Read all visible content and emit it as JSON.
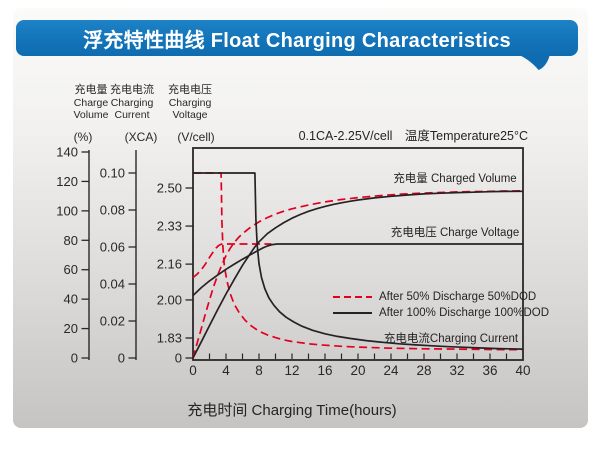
{
  "header": {
    "title": "浮充特性曲线 Float Charging Characteristics"
  },
  "colors": {
    "banner_blue": "#1373b8",
    "banner_blue_dark": "#0f6cb0",
    "red": "#e3001e",
    "ink": "#2b2728",
    "curve_black": "#262223"
  },
  "chart_data": {
    "type": "line",
    "title": "浮充特性曲线 Float Charging Characteristics",
    "condition_note": "0.1CA-2.25V/cell　温度Temperature25°C",
    "x_axis": {
      "title": "充电时间 Charging Time(hours)",
      "min": 0,
      "max": 40,
      "tick_step": 4,
      "minor_tick_step": 2,
      "tick_labels": [
        "0",
        "4",
        "8",
        "12",
        "16",
        "20",
        "24",
        "28",
        "32",
        "36",
        "40"
      ]
    },
    "y_axes": [
      {
        "id": "percent",
        "label_zh": "充电量",
        "label_en1": "Charge",
        "label_en2": "Volume",
        "unit": "(%)",
        "min": 0,
        "max": 140,
        "tick_labels": [
          "0",
          "20",
          "40",
          "60",
          "80",
          "100",
          "120",
          "140"
        ]
      },
      {
        "id": "xca",
        "label_zh": "充电电流",
        "label_en1": "Charging",
        "label_en2": "Current",
        "unit": "(XCA)",
        "min": 0,
        "max": 0.1,
        "tick_labels": [
          "0",
          "0.02",
          "0.04",
          "0.06",
          "0.08",
          "0.10"
        ]
      },
      {
        "id": "vcell",
        "label_zh": "充电电压",
        "label_en1": "Charging",
        "label_en2": "Voltage",
        "unit": "(V/cell)",
        "min": 1.83,
        "max": 2.5,
        "tick_labels": [
          "0",
          "1.83",
          "2.00",
          "2.16",
          "2.33",
          "2.50"
        ]
      }
    ],
    "legend": [
      {
        "label": "After 50% Discharge 50%DOD",
        "line": "dashed",
        "color": "#e3001e"
      },
      {
        "label": "After 100%  Discharge 100%DOD",
        "line": "solid",
        "color": "#262223"
      }
    ],
    "curve_labels": [
      {
        "text": "充电量 Charged Volume"
      },
      {
        "text": "充电电压 Charge Voltage"
      },
      {
        "text": "充电电流Charging Current"
      }
    ],
    "series": [
      {
        "id": "charged-volume-50dod",
        "name": "Charged Volume (50%DOD)",
        "scale": "percent",
        "color": "#e3001e",
        "dashed": true,
        "points": [
          [
            0,
            0
          ],
          [
            0.5,
            10
          ],
          [
            1,
            20
          ],
          [
            1.5,
            30
          ],
          [
            2,
            39.5
          ],
          [
            2.5,
            48.5
          ],
          [
            3,
            56.5
          ],
          [
            3.5,
            63.5
          ],
          [
            4,
            69.5
          ],
          [
            4.5,
            74.5
          ],
          [
            5,
            78.5
          ],
          [
            5.5,
            81.8
          ],
          [
            6,
            84.5
          ],
          [
            7,
            89
          ],
          [
            8,
            92.5
          ],
          [
            9,
            95.4
          ],
          [
            10,
            97.8
          ],
          [
            11,
            99.8
          ],
          [
            12,
            101.4
          ],
          [
            14,
            104
          ],
          [
            16,
            106.1
          ],
          [
            18,
            107.7
          ],
          [
            20,
            109
          ],
          [
            22,
            110
          ],
          [
            24,
            110.9
          ],
          [
            26,
            111.6
          ],
          [
            28,
            112.1
          ],
          [
            30,
            112.5
          ],
          [
            32,
            112.9
          ],
          [
            34,
            113.1
          ],
          [
            36,
            113.3
          ],
          [
            38,
            113.5
          ],
          [
            40,
            113.6
          ]
        ]
      },
      {
        "id": "charge-voltage-50dod",
        "name": "Charge Voltage (50%DOD)",
        "scale": "vcell",
        "color": "#e3001e",
        "dashed": true,
        "points": [
          [
            0,
            2.1
          ],
          [
            0.5,
            2.115
          ],
          [
            1,
            2.135
          ],
          [
            1.5,
            2.16
          ],
          [
            2,
            2.19
          ],
          [
            2.4,
            2.212
          ],
          [
            2.8,
            2.232
          ],
          [
            3.1,
            2.243
          ],
          [
            3.4,
            2.249
          ],
          [
            3.6,
            2.25
          ],
          [
            9.5,
            2.25
          ]
        ]
      },
      {
        "id": "charging-current-50dod",
        "name": "Charging Current (50%DOD)",
        "scale": "xca",
        "color": "#e3001e",
        "dashed": true,
        "points": [
          [
            0,
            0.1
          ],
          [
            3.4,
            0.1
          ],
          [
            3.5,
            0.074
          ],
          [
            3.62,
            0.06
          ],
          [
            3.8,
            0.05
          ],
          [
            4.1,
            0.042
          ],
          [
            4.5,
            0.035
          ],
          [
            5,
            0.029
          ],
          [
            5.6,
            0.0245
          ],
          [
            6.3,
            0.0205
          ],
          [
            7,
            0.0175
          ],
          [
            8,
            0.0145
          ],
          [
            9,
            0.0125
          ],
          [
            10,
            0.011
          ],
          [
            11,
            0.0098
          ],
          [
            12,
            0.0089
          ],
          [
            14,
            0.0077
          ],
          [
            16,
            0.0069
          ],
          [
            18,
            0.0063
          ],
          [
            20,
            0.0059
          ],
          [
            24,
            0.0053
          ],
          [
            28,
            0.005
          ],
          [
            32,
            0.0048
          ],
          [
            36,
            0.0046
          ],
          [
            40,
            0.0045
          ]
        ]
      },
      {
        "id": "charging-current-100dod",
        "name": "Charging Current (100%DOD)",
        "scale": "xca",
        "color": "#262223",
        "dashed": false,
        "points": [
          [
            0,
            0.1
          ],
          [
            7.5,
            0.1
          ],
          [
            7.62,
            0.075
          ],
          [
            7.78,
            0.061
          ],
          [
            8,
            0.051
          ],
          [
            8.3,
            0.0435
          ],
          [
            8.7,
            0.0375
          ],
          [
            9.2,
            0.0325
          ],
          [
            9.8,
            0.0285
          ],
          [
            10.5,
            0.025
          ],
          [
            11.3,
            0.022
          ],
          [
            12.2,
            0.0195
          ],
          [
            13.2,
            0.0172
          ],
          [
            14.5,
            0.015
          ],
          [
            16,
            0.0131
          ],
          [
            17.5,
            0.0117
          ],
          [
            19,
            0.0106
          ],
          [
            21,
            0.0094
          ],
          [
            23,
            0.0085
          ],
          [
            25,
            0.0077
          ],
          [
            27,
            0.0071
          ],
          [
            29,
            0.0066
          ],
          [
            31,
            0.0061
          ],
          [
            33,
            0.0058
          ],
          [
            35,
            0.0054
          ],
          [
            37,
            0.0051
          ],
          [
            40,
            0.0048
          ]
        ]
      },
      {
        "id": "charge-voltage-100dod",
        "name": "Charge Voltage (100%DOD)",
        "scale": "vcell",
        "color": "#262223",
        "dashed": false,
        "points": [
          [
            0,
            2.02
          ],
          [
            1,
            2.055
          ],
          [
            2,
            2.085
          ],
          [
            3,
            2.112
          ],
          [
            4,
            2.137
          ],
          [
            5,
            2.16
          ],
          [
            6,
            2.182
          ],
          [
            7,
            2.203
          ],
          [
            7.8,
            2.219
          ],
          [
            8.4,
            2.231
          ],
          [
            9,
            2.241
          ],
          [
            9.6,
            2.247
          ],
          [
            10.2,
            2.25
          ],
          [
            40,
            2.25
          ]
        ]
      },
      {
        "id": "charged-volume-100dod",
        "name": "Charged Volume (100%DOD)",
        "scale": "percent",
        "color": "#262223",
        "dashed": false,
        "points": [
          [
            0,
            0
          ],
          [
            1,
            11
          ],
          [
            2,
            22
          ],
          [
            3,
            33
          ],
          [
            4,
            43.5
          ],
          [
            5,
            53.5
          ],
          [
            6,
            63
          ],
          [
            7,
            71.5
          ],
          [
            7.5,
            75.5
          ],
          [
            8,
            79
          ],
          [
            9,
            84.5
          ],
          [
            10,
            88.5
          ],
          [
            11,
            92
          ],
          [
            12,
            95
          ],
          [
            13,
            97.5
          ],
          [
            14,
            99.7
          ],
          [
            15,
            101.5
          ],
          [
            16,
            103
          ],
          [
            17,
            104.4
          ],
          [
            18,
            105.5
          ],
          [
            19,
            106.5
          ],
          [
            20,
            107.4
          ],
          [
            22,
            108.8
          ],
          [
            24,
            109.9
          ],
          [
            26,
            110.8
          ],
          [
            28,
            111.5
          ],
          [
            30,
            112
          ],
          [
            32,
            112.4
          ],
          [
            34,
            112.7
          ],
          [
            36,
            113
          ],
          [
            38,
            113.2
          ],
          [
            40,
            113.3
          ]
        ]
      }
    ]
  }
}
